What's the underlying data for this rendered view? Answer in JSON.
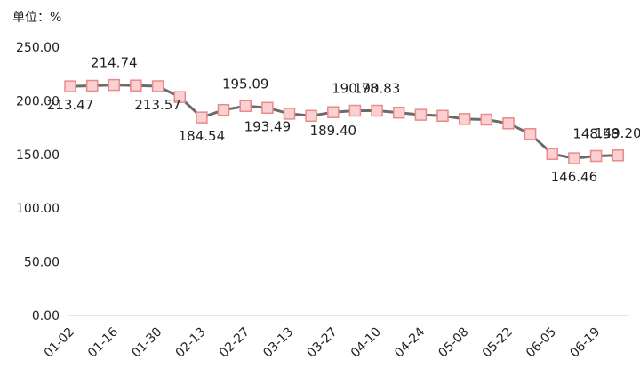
{
  "chart_data": {
    "type": "line",
    "unit_label": "单位：%",
    "ylim": [
      0,
      250
    ],
    "y_ticks": [
      "0.00",
      "50.00",
      "100.00",
      "150.00",
      "200.00",
      "250.00"
    ],
    "x_tick_labels": [
      "01-02",
      "01-16",
      "01-30",
      "02-13",
      "02-27",
      "03-13",
      "03-27",
      "04-10",
      "04-24",
      "05-08",
      "05-22",
      "06-05",
      "06-19"
    ],
    "series": [
      {
        "values": [
          213.47,
          214.0,
          214.74,
          214.2,
          213.57,
          203.5,
          184.54,
          191.5,
          195.09,
          193.49,
          188.0,
          186.0,
          189.4,
          190.78,
          190.83,
          189.0,
          187.0,
          186.0,
          183.0,
          182.5,
          179.0,
          169.0,
          150.5,
          146.46,
          148.58,
          149.2
        ],
        "color": "#6b6b6b",
        "marker_fill": "#fbd0d0",
        "marker_stroke": "#e78b8b"
      }
    ],
    "data_labels": [
      {
        "index": 0,
        "text": "213.47",
        "pos": "below"
      },
      {
        "index": 2,
        "text": "214.74",
        "pos": "above"
      },
      {
        "index": 4,
        "text": "213.57",
        "pos": "below"
      },
      {
        "index": 6,
        "text": "184.54",
        "pos": "below"
      },
      {
        "index": 8,
        "text": "195.09",
        "pos": "above"
      },
      {
        "index": 9,
        "text": "193.49",
        "pos": "below"
      },
      {
        "index": 12,
        "text": "189.40",
        "pos": "below"
      },
      {
        "index": 13,
        "text": "190.78",
        "pos": "above"
      },
      {
        "index": 14,
        "text": "190.83",
        "pos": "above"
      },
      {
        "index": 23,
        "text": "146.46",
        "pos": "below"
      },
      {
        "index": 24,
        "text": "148.58",
        "pos": "above"
      },
      {
        "index": 25,
        "text": "149.20",
        "pos": "above"
      }
    ],
    "grid": false,
    "legend": "none"
  }
}
